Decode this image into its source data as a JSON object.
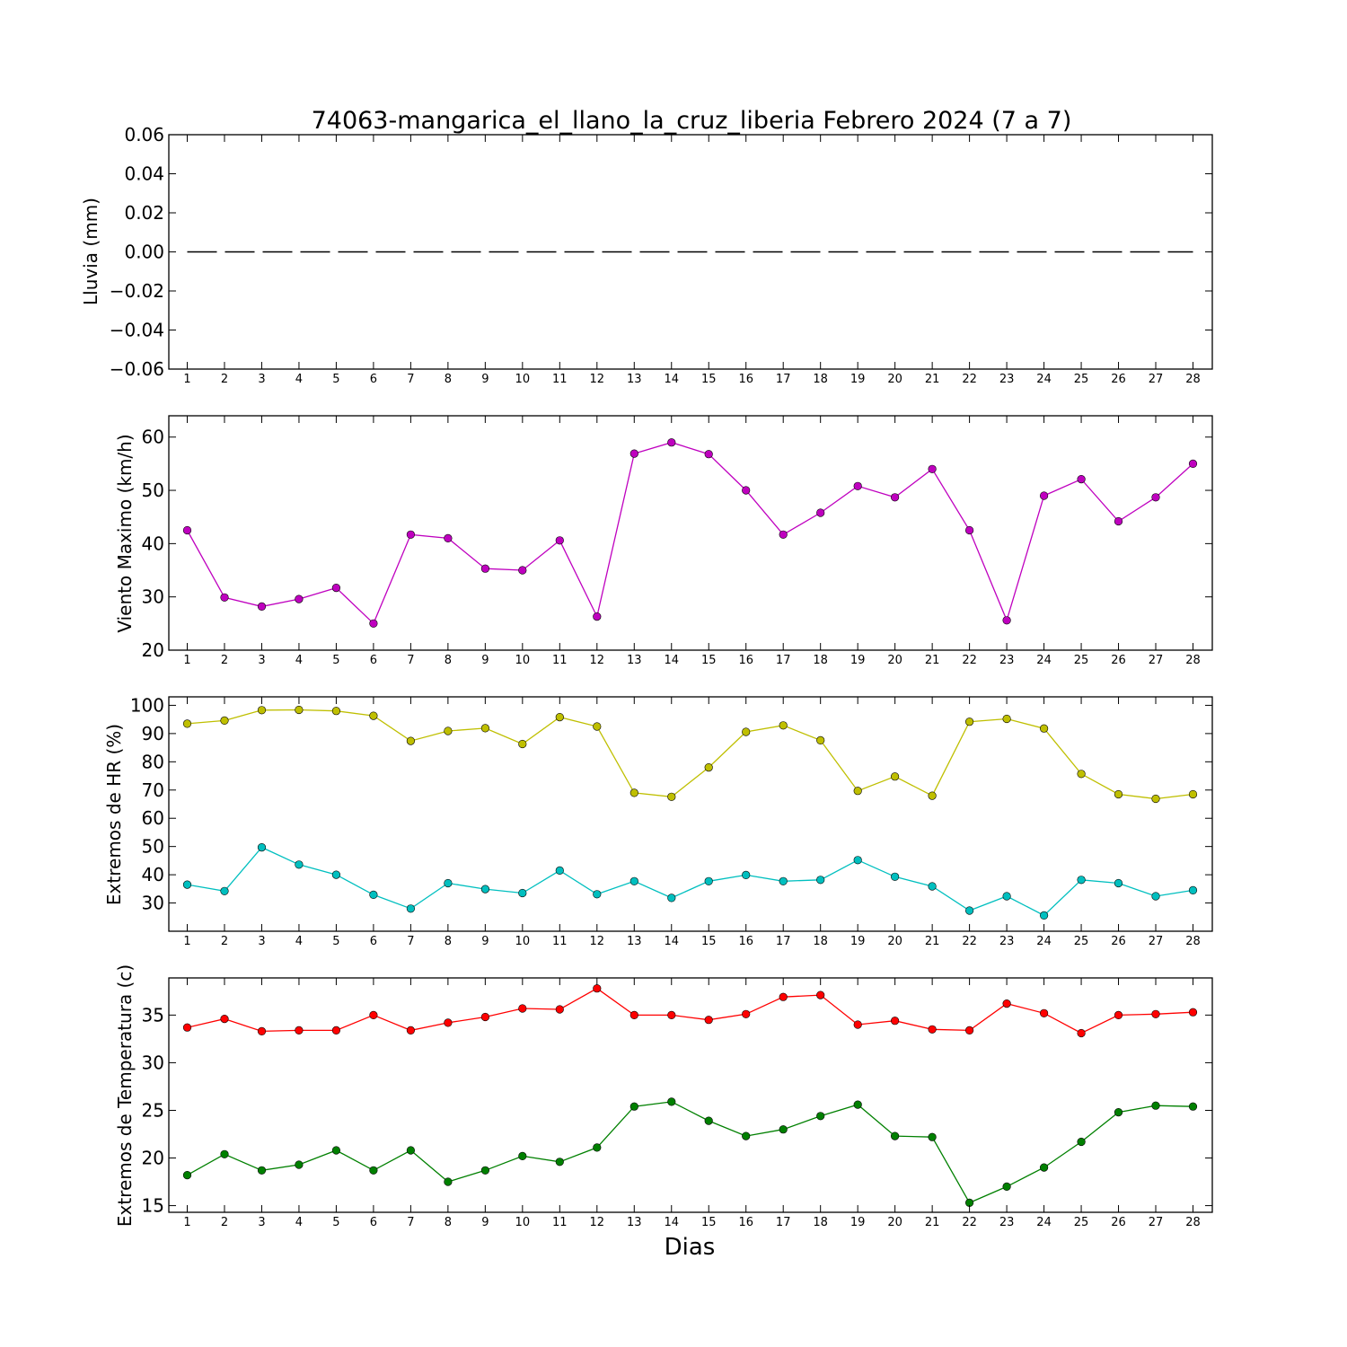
{
  "chart_data": [
    {
      "type": "line",
      "title": "74063-mangarica_el_llano_la_cruz_liberia Febrero 2024  (7 a 7)",
      "ylabel": "Lluvia (mm)",
      "xlabel": "",
      "x": [
        1,
        2,
        3,
        4,
        5,
        6,
        7,
        8,
        9,
        10,
        11,
        12,
        13,
        14,
        15,
        16,
        17,
        18,
        19,
        20,
        21,
        22,
        23,
        24,
        25,
        26,
        27,
        28
      ],
      "ylim": [
        -0.06,
        0.06
      ],
      "yticks": [
        "0.06",
        "0.04",
        "0.02",
        "0.00",
        "−0.02",
        "−0.04",
        "−0.06"
      ],
      "ytick_values": [
        0.06,
        0.04,
        0.02,
        0.0,
        -0.02,
        -0.04,
        -0.06
      ],
      "grid": false,
      "series": [
        {
          "color": "#000000",
          "style": "dashed",
          "markers": false,
          "values": [
            0,
            0,
            0,
            0,
            0,
            0,
            0,
            0,
            0,
            0,
            0,
            0,
            0,
            0,
            0,
            0,
            0,
            0,
            0,
            0,
            0,
            0,
            0,
            0,
            0,
            0,
            0,
            0
          ]
        }
      ]
    },
    {
      "type": "line",
      "title": "",
      "ylabel": "Viento Maximo (km/h)",
      "xlabel": "",
      "x": [
        1,
        2,
        3,
        4,
        5,
        6,
        7,
        8,
        9,
        10,
        11,
        12,
        13,
        14,
        15,
        16,
        17,
        18,
        19,
        20,
        21,
        22,
        23,
        24,
        25,
        26,
        27,
        28
      ],
      "ylim": [
        20,
        64
      ],
      "yticks": [
        "20",
        "30",
        "40",
        "50",
        "60"
      ],
      "ytick_values": [
        20,
        30,
        40,
        50,
        60
      ],
      "grid": false,
      "series": [
        {
          "color": "#bf00bf",
          "style": "solid",
          "markers": true,
          "values": [
            42.5,
            29.9,
            28.2,
            29.6,
            31.7,
            25.0,
            41.7,
            41.0,
            35.3,
            35.0,
            40.6,
            26.3,
            56.9,
            59.0,
            56.8,
            50.0,
            41.7,
            45.8,
            50.8,
            48.7,
            54.0,
            42.5,
            25.6,
            49.0,
            52.1,
            44.2,
            48.7,
            55.0
          ]
        }
      ]
    },
    {
      "type": "line",
      "title": "",
      "ylabel": "Extremos de HR (%)",
      "xlabel": "",
      "x": [
        1,
        2,
        3,
        4,
        5,
        6,
        7,
        8,
        9,
        10,
        11,
        12,
        13,
        14,
        15,
        16,
        17,
        18,
        19,
        20,
        21,
        22,
        23,
        24,
        25,
        26,
        27,
        28
      ],
      "ylim": [
        20,
        103
      ],
      "yticks": [
        "100",
        "90",
        "80",
        "70",
        "60",
        "50",
        "40",
        "30"
      ],
      "ytick_values": [
        100,
        90,
        80,
        70,
        60,
        50,
        40,
        30
      ],
      "grid": false,
      "series": [
        {
          "color": "#bfbf00",
          "style": "solid",
          "markers": true,
          "values": [
            93.5,
            94.6,
            98.3,
            98.4,
            98.0,
            96.3,
            87.4,
            90.9,
            91.9,
            86.3,
            95.8,
            92.5,
            69.0,
            67.6,
            78.0,
            90.6,
            92.9,
            87.6,
            69.7,
            74.8,
            68.0,
            94.2,
            95.2,
            91.8,
            75.7,
            68.5,
            66.9,
            68.5
          ]
        },
        {
          "color": "#00bfbf",
          "style": "solid",
          "markers": true,
          "values": [
            36.5,
            34.2,
            49.7,
            43.6,
            40.0,
            32.9,
            28.0,
            37.0,
            34.9,
            33.5,
            41.5,
            33.1,
            37.7,
            31.8,
            37.7,
            39.9,
            37.7,
            38.2,
            45.2,
            39.3,
            35.9,
            27.3,
            32.4,
            25.6,
            38.2,
            37.0,
            32.4,
            34.5
          ]
        }
      ]
    },
    {
      "type": "line",
      "title": "",
      "ylabel": "Extremos de Temperatura (c)",
      "xlabel": "Dias",
      "x": [
        1,
        2,
        3,
        4,
        5,
        6,
        7,
        8,
        9,
        10,
        11,
        12,
        13,
        14,
        15,
        16,
        17,
        18,
        19,
        20,
        21,
        22,
        23,
        24,
        25,
        26,
        27,
        28
      ],
      "ylim": [
        14.3,
        38.9
      ],
      "yticks": [
        "35",
        "30",
        "25",
        "20",
        "15"
      ],
      "ytick_values": [
        35,
        30,
        25,
        20,
        15
      ],
      "grid": false,
      "series": [
        {
          "color": "#ff0000",
          "style": "solid",
          "markers": true,
          "values": [
            33.7,
            34.6,
            33.3,
            33.4,
            33.4,
            35.0,
            33.4,
            34.2,
            34.8,
            35.7,
            35.6,
            37.8,
            35.0,
            35.0,
            34.5,
            35.1,
            36.9,
            37.1,
            34.0,
            34.4,
            33.5,
            33.4,
            36.2,
            35.2,
            33.1,
            35.0,
            35.1,
            35.3
          ]
        },
        {
          "color": "#008000",
          "style": "solid",
          "markers": true,
          "values": [
            18.2,
            20.4,
            18.7,
            19.3,
            20.8,
            18.7,
            20.8,
            17.5,
            18.7,
            20.2,
            19.6,
            21.1,
            25.4,
            25.9,
            23.9,
            22.3,
            23.0,
            24.4,
            25.6,
            22.3,
            22.2,
            15.3,
            17.0,
            19.0,
            21.7,
            24.8,
            25.5,
            25.4
          ]
        }
      ]
    }
  ]
}
